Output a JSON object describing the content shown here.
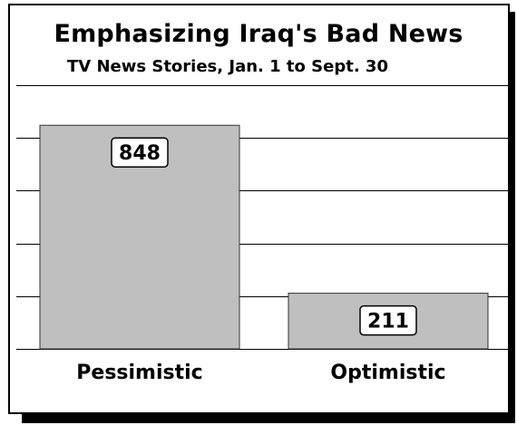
{
  "chart_data": {
    "type": "bar",
    "title": "Emphasizing Iraq's Bad News",
    "subtitle": "TV News Stories, Jan. 1 to Sept. 30",
    "categories": [
      "Pessimistic",
      "Optimistic"
    ],
    "values": [
      848,
      211
    ],
    "data_labels": [
      "848",
      "211"
    ],
    "xlabel": "",
    "ylabel": "",
    "ylim": [
      0,
      1000
    ],
    "grid": true,
    "legend": "none",
    "colors": {
      "bar": "#bfbfbf",
      "bar_edge": "#333333",
      "grid": "#000000",
      "label_box": "#ffffff"
    }
  }
}
